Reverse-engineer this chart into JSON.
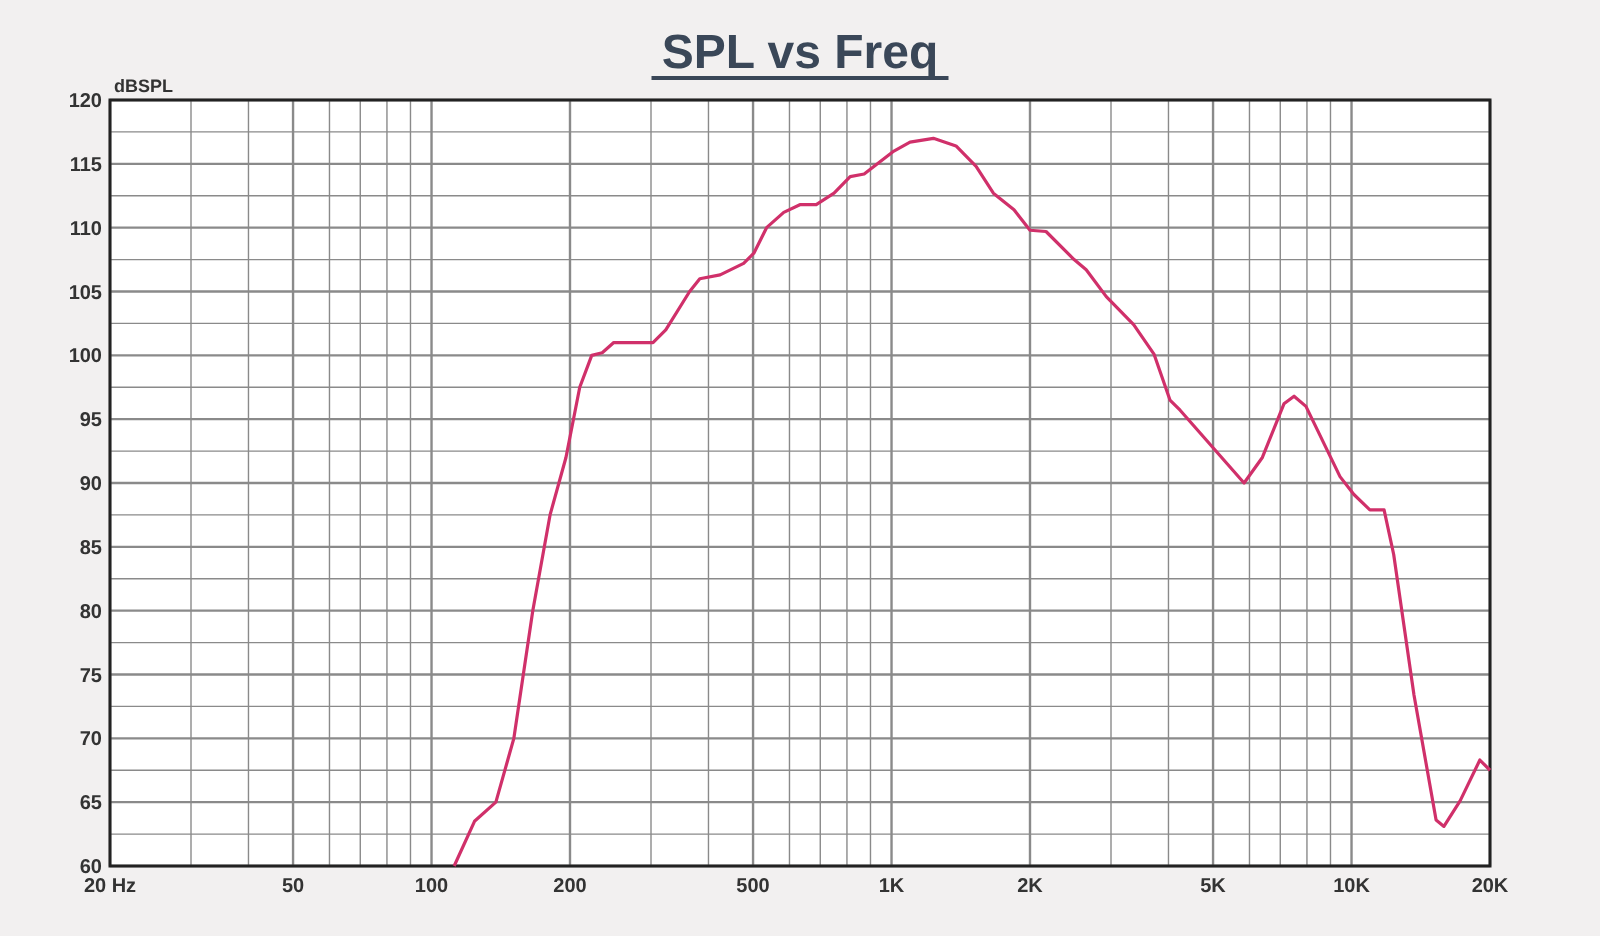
{
  "chart_data": {
    "type": "line",
    "title": "SPL vs Freq",
    "ylabel": "dBSPL",
    "log": "x",
    "grid": true,
    "marker": "none",
    "line_style": "solid",
    "xlim": [
      20,
      20000
    ],
    "ylim": [
      60,
      120
    ],
    "xticks": [
      {
        "value": 20,
        "label": "20  Hz"
      },
      {
        "value": 30,
        "label": null
      },
      {
        "value": 40,
        "label": null
      },
      50,
      {
        "value": 60,
        "label": null
      },
      {
        "value": 70,
        "label": null
      },
      {
        "value": 80,
        "label": null
      },
      {
        "value": 90,
        "label": null
      },
      100,
      200,
      {
        "value": 300,
        "label": null
      },
      {
        "value": 400,
        "label": null
      },
      500,
      {
        "value": 600,
        "label": null
      },
      {
        "value": 700,
        "label": null
      },
      {
        "value": 800,
        "label": null
      },
      {
        "value": 900,
        "label": null
      },
      {
        "value": 1000,
        "label": "1K"
      },
      {
        "value": 2000,
        "label": "2K"
      },
      {
        "value": 3000,
        "label": null
      },
      {
        "value": 4000,
        "label": null
      },
      {
        "value": 5000,
        "label": "5K"
      },
      {
        "value": 6000,
        "label": null
      },
      {
        "value": 7000,
        "label": null
      },
      {
        "value": 8000,
        "label": null
      },
      {
        "value": 9000,
        "label": null
      },
      {
        "value": 10000,
        "label": "10K"
      },
      {
        "value": 20000,
        "label": "20K"
      }
    ],
    "yticks": [
      60,
      {
        "value": 62.5,
        "label": null
      },
      65,
      {
        "value": 67.5,
        "label": null
      },
      70,
      {
        "value": 72.5,
        "label": null
      },
      75,
      {
        "value": 77.5,
        "label": null
      },
      80,
      {
        "value": 82.5,
        "label": null
      },
      85,
      {
        "value": 87.5,
        "label": null
      },
      90,
      {
        "value": 92.5,
        "label": null
      },
      95,
      {
        "value": 97.5,
        "label": null
      },
      100,
      {
        "value": 102.5,
        "label": null
      },
      105,
      {
        "value": 107.5,
        "label": null
      },
      110,
      {
        "value": 112.5,
        "label": null
      },
      115,
      {
        "value": 117.5,
        "label": null
      },
      120
    ],
    "series": [
      {
        "color": "#d0306a",
        "x": [
          112,
          124,
          138,
          151,
          166,
          181,
          196,
          210,
          223,
          235,
          249,
          303,
          323,
          364,
          383,
          424,
          477,
          502,
          535,
          583,
          632,
          686,
          750,
          813,
          872,
          1012,
          1097,
          1233,
          1381,
          1527,
          1665,
          1846,
          2000,
          2167,
          2494,
          2650,
          2930,
          3360,
          3720,
          4030,
          4240,
          5840,
          6400,
          7130,
          7500,
          7960,
          9440,
          10120,
          10960,
          11770,
          12350,
          13670,
          15270,
          15880,
          17220,
          19010,
          20000
        ],
        "values": [
          60,
          63.5,
          65,
          70,
          80,
          87.5,
          92,
          97.5,
          100,
          100.2,
          101,
          101,
          102,
          105,
          106,
          106.3,
          107.2,
          108,
          110,
          111.2,
          111.8,
          111.8,
          112.7,
          114,
          114.2,
          116,
          116.7,
          117,
          116.4,
          114.8,
          112.7,
          111.4,
          109.8,
          109.7,
          107.5,
          106.7,
          104.6,
          102.4,
          100.1,
          96.5,
          95.7,
          90,
          92,
          96.2,
          96.8,
          96,
          90.5,
          89.1,
          87.9,
          87.9,
          84.4,
          73.4,
          63.6,
          63.1,
          65.1,
          68.3,
          67.5
        ]
      }
    ]
  }
}
